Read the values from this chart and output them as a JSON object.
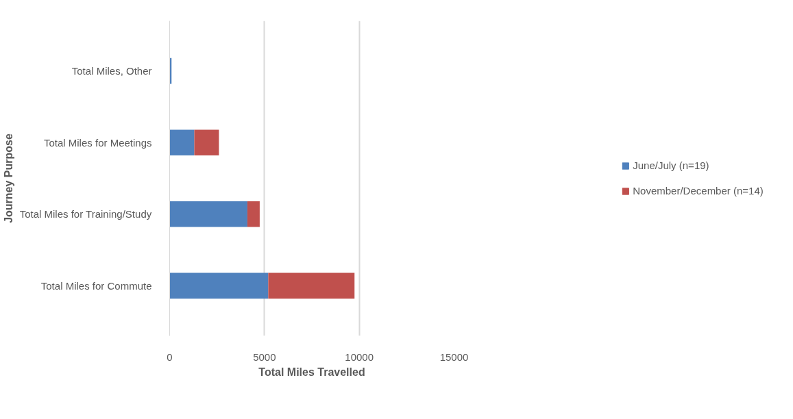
{
  "chart_data": {
    "type": "bar",
    "orientation": "horizontal",
    "stacked": true,
    "xlabel": "Total Miles Travelled",
    "ylabel": "Journey Purpose",
    "categories": [
      "Total Miles, Other",
      "Total Miles for Meetings",
      "Total Miles for Training/Study",
      "Total Miles for Commute"
    ],
    "series": [
      {
        "name": "June/July (n=19)",
        "color": "#4f81bd",
        "values": [
          100,
          1300,
          4100,
          5200
        ]
      },
      {
        "name": "November/December (n=14)",
        "color": "#c0504d",
        "values": [
          0,
          1300,
          650,
          4550
        ]
      }
    ],
    "xlim": [
      0,
      15000
    ],
    "xticks": [
      0,
      5000,
      10000,
      15000
    ],
    "grid": "x",
    "legend": "right"
  }
}
